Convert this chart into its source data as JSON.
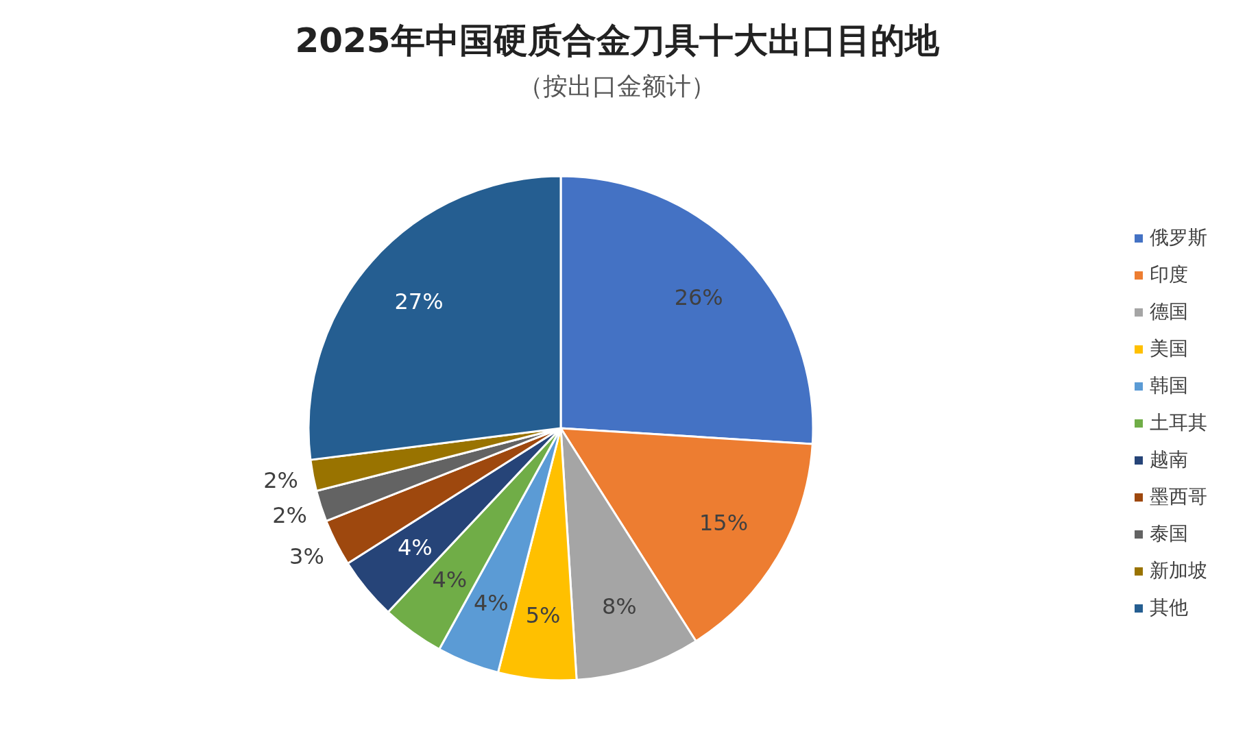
{
  "chart_data": {
    "type": "pie",
    "title": "2025年中国硬质合金刀具十大出口目的地",
    "subtitle": "（按出口金额计）",
    "categories": [
      "俄罗斯",
      "印度",
      "德国",
      "美国",
      "韩国",
      "土耳其",
      "越南",
      "墨西哥",
      "泰国",
      "新加坡",
      "其他"
    ],
    "values": [
      26,
      15,
      8,
      5,
      4,
      4,
      4,
      3,
      2,
      2,
      27
    ],
    "value_labels": [
      "26%",
      "15%",
      "8%",
      "5%",
      "4%",
      "4%",
      "4%",
      "3%",
      "2%",
      "2%",
      "27%"
    ],
    "colors": [
      "#4472c4",
      "#ed7d31",
      "#a5a5a5",
      "#ffc000",
      "#5b9bd5",
      "#70ad47",
      "#264478",
      "#9e480e",
      "#636363",
      "#997300",
      "#255e91"
    ],
    "legend": "right"
  }
}
